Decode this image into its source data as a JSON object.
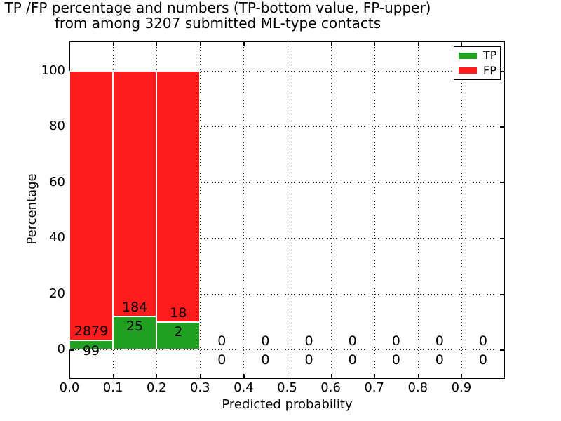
{
  "figure": {
    "title_line1": "TP /FP percentage and numbers (TP-bottom value, FP-upper)",
    "title_line2": "from among 3207 submitted ML-type contacts"
  },
  "chart_data": {
    "type": "bar",
    "stacked": true,
    "title": "TP /FP percentage and numbers (TP-bottom value, FP-upper)\nfrom among 3207 submitted ML-type contacts",
    "xlabel": "Predicted probability",
    "ylabel": "Percentage",
    "total_contacts": 3207,
    "xlim": [
      0.0,
      1.0
    ],
    "ylim": [
      -10.5,
      110.5
    ],
    "xticks": [
      "0.0",
      "0.1",
      "0.2",
      "0.3",
      "0.4",
      "0.5",
      "0.6",
      "0.7",
      "0.8",
      "0.9"
    ],
    "yticks": [
      "0",
      "20",
      "40",
      "60",
      "80",
      "100"
    ],
    "grid": "dotted",
    "bin_edges": [
      0.0,
      0.1,
      0.2,
      0.3,
      0.4,
      0.5,
      0.6,
      0.7,
      0.8,
      0.9,
      1.0
    ],
    "series": [
      {
        "name": "TP",
        "color": "#22a022",
        "position": "bottom",
        "counts": [
          99,
          25,
          2,
          0,
          0,
          0,
          0,
          0,
          0,
          0
        ],
        "percent": [
          3.324,
          11.962,
          10.0,
          0,
          0,
          0,
          0,
          0,
          0,
          0
        ]
      },
      {
        "name": "FP",
        "color": "#ff1c1c",
        "position": "upper",
        "counts": [
          2879,
          184,
          18,
          0,
          0,
          0,
          0,
          0,
          0,
          0
        ],
        "percent": [
          96.676,
          88.038,
          90.0,
          0,
          0,
          0,
          0,
          0,
          0,
          0
        ]
      }
    ],
    "legend": {
      "position": "upper-right",
      "entries": [
        {
          "label": "TP",
          "color": "#22a022"
        },
        {
          "label": "FP",
          "color": "#ff1c1c"
        }
      ]
    }
  }
}
